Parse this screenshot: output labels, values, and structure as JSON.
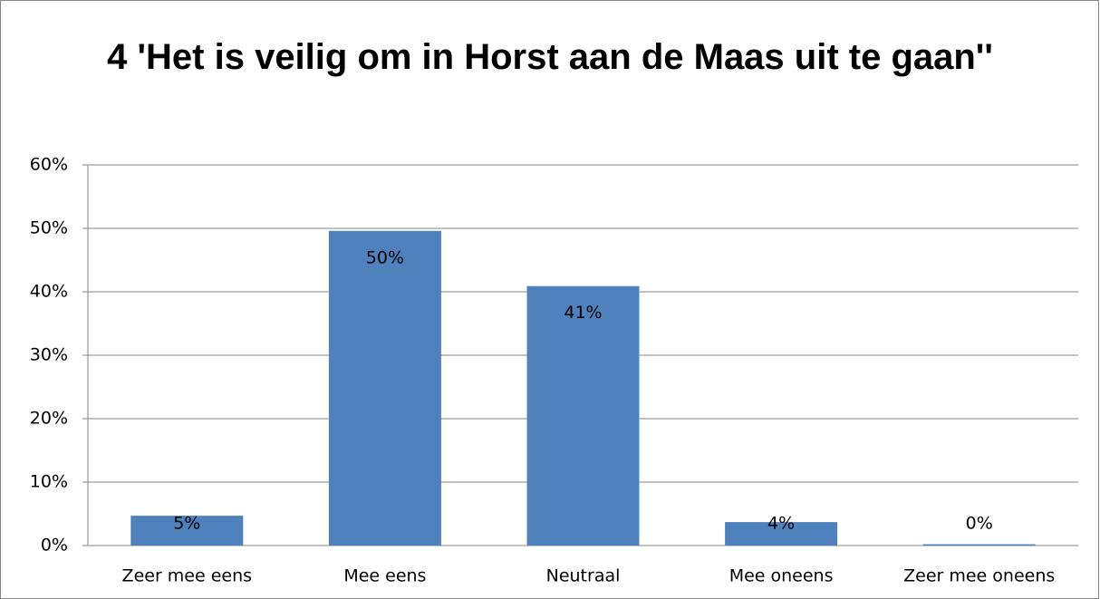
{
  "chart_data": {
    "type": "bar",
    "title": "4 'Het is veilig om in Horst aan de Maas uit te gaan''",
    "categories": [
      "Zeer mee eens",
      "Mee eens",
      "Neutraal",
      "Mee oneens",
      "Zeer mee oneens"
    ],
    "values": [
      4.7,
      49.6,
      40.9,
      3.7,
      0.2
    ],
    "value_labels": [
      "5%",
      "50%",
      "41%",
      "4%",
      "0%"
    ],
    "color": "#4f81bd",
    "ylim": [
      0,
      60
    ],
    "yticks": [
      {
        "value": 0,
        "label": "0%"
      },
      {
        "value": 10,
        "label": "10%"
      },
      {
        "value": 20,
        "label": "20%"
      },
      {
        "value": 30,
        "label": "30%"
      },
      {
        "value": 40,
        "label": "40%"
      },
      {
        "value": 50,
        "label": "50%"
      },
      {
        "value": 60,
        "label": "60%"
      }
    ],
    "grid": true
  }
}
